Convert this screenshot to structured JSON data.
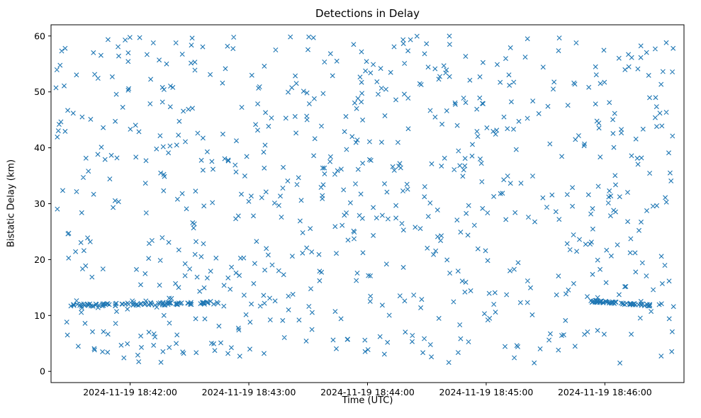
{
  "chart_data": {
    "type": "scatter",
    "title": "Detections in Delay",
    "xlabel": "Time (UTC)",
    "ylabel": "Bistatic Delay (km)",
    "marker": "x",
    "marker_color": "#1f77b4",
    "frame_color": "#000000",
    "x_axis": {
      "range_seconds": [
        0,
        320
      ],
      "ticks": [
        {
          "label": "2024-11-19 18:42:00",
          "t": 40
        },
        {
          "label": "2024-11-19 18:43:00",
          "t": 100
        },
        {
          "label": "2024-11-19 18:44:00",
          "t": 160
        },
        {
          "label": "2024-11-19 18:45:00",
          "t": 220
        },
        {
          "label": "2024-11-19 18:46:00",
          "t": 280
        }
      ]
    },
    "y_axis": {
      "lim": [
        -2,
        62
      ],
      "ticks": [
        0,
        10,
        20,
        30,
        40,
        50,
        60
      ]
    },
    "distribution": {
      "seed": 42,
      "uniform": {
        "n": 760,
        "t_range": [
          2,
          316
        ],
        "y_range": [
          1.5,
          60
        ]
      },
      "bands": [
        {
          "n": 95,
          "t_range": [
            8,
            85
          ],
          "y_start": 11.8,
          "y_end": 12.3,
          "y_jitter": 0.25
        },
        {
          "n": 60,
          "t_range": [
            272,
            303
          ],
          "y_start": 12.6,
          "y_end": 11.8,
          "y_jitter": 0.2
        }
      ]
    }
  }
}
